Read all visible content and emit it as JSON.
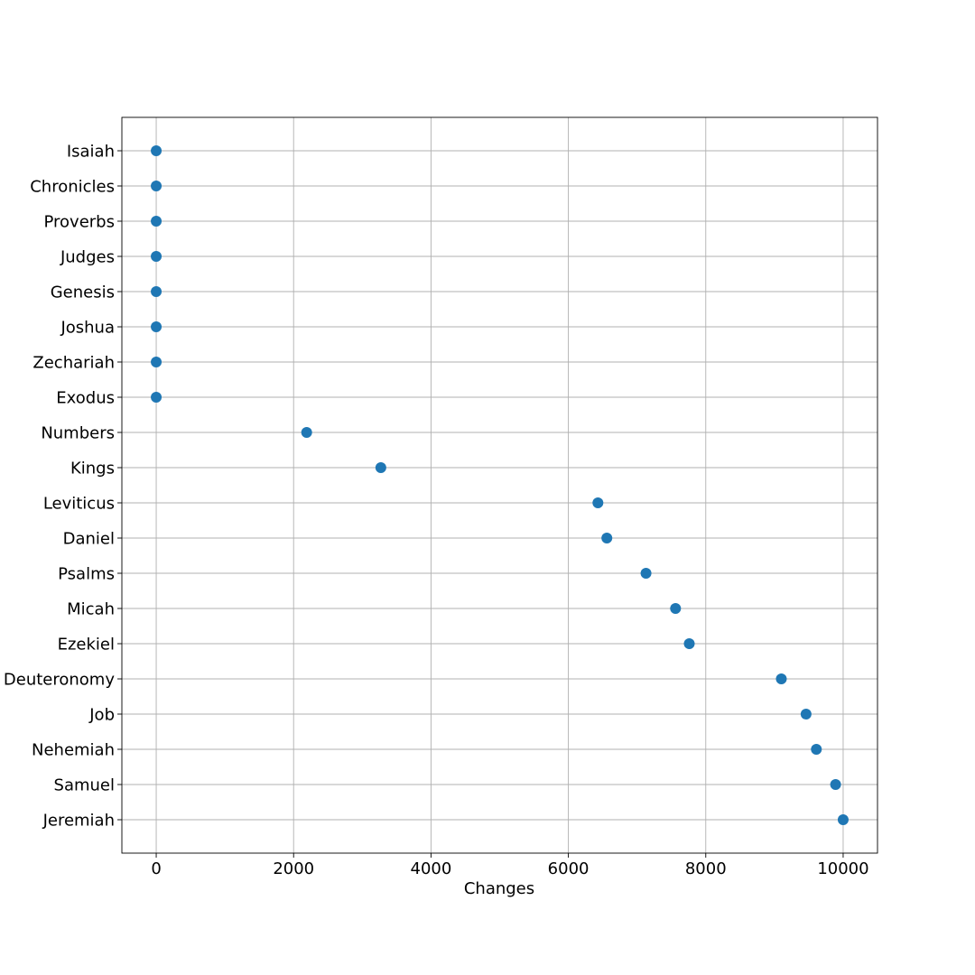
{
  "chart_data": {
    "type": "scatter",
    "title": "",
    "xlabel": "Changes",
    "ylabel": "",
    "xlim": [
      -500,
      10500
    ],
    "xticks": [
      0,
      2000,
      4000,
      6000,
      8000,
      10000
    ],
    "xtick_labels": [
      "0",
      "2000",
      "4000",
      "6000",
      "8000",
      "10000"
    ],
    "grid": true,
    "legend": "none",
    "color": "#1f77b4",
    "categories": [
      "Isaiah",
      "Chronicles",
      "Proverbs",
      "Judges",
      "Genesis",
      "Joshua",
      "Zechariah",
      "Exodus",
      "Numbers",
      "Kings",
      "Leviticus",
      "Daniel",
      "Psalms",
      "Micah",
      "Ezekiel",
      "Deuteronomy",
      "Job",
      "Nehemiah",
      "Samuel",
      "Jeremiah"
    ],
    "values": [
      0,
      0,
      0,
      0,
      0,
      0,
      0,
      0,
      2190,
      3270,
      6430,
      6560,
      7130,
      7560,
      7760,
      9100,
      9460,
      9610,
      9890,
      10000
    ]
  }
}
